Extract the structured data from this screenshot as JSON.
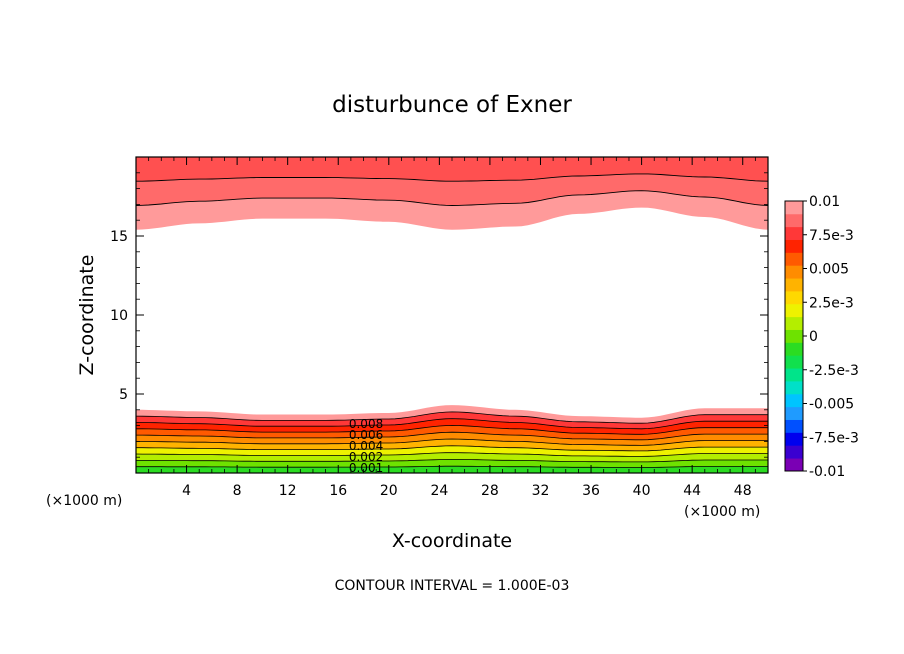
{
  "chart_data": {
    "type": "contour",
    "title": "disturbunce of Exner",
    "xlabel": "X-coordinate",
    "ylabel": "Z-coordinate",
    "x_unit_left": "(×1000 m)",
    "x_unit_right": "(×1000 m)",
    "xlim": [
      0,
      50
    ],
    "ylim": [
      0,
      20
    ],
    "xticks": [
      4,
      8,
      12,
      16,
      20,
      24,
      28,
      32,
      36,
      40,
      44,
      48
    ],
    "yticks": [
      5,
      10,
      15
    ],
    "contour_interval_text": "CONTOUR INTERVAL = 1.000E-03",
    "contour_labels": [
      "0.008",
      "0.006",
      "0.004",
      "0.002",
      "0.001"
    ],
    "colorbar": {
      "min": -0.01,
      "max": 0.01,
      "tick_labels": [
        "0.01",
        "7.5e-3",
        "0.005",
        "2.5e-3",
        "0",
        "-2.5e-3",
        "-0.005",
        "-7.5e-3",
        "-0.01"
      ],
      "colors": [
        "#7a00b4",
        "#3a00d0",
        "#0000ee",
        "#0050ff",
        "#1f9bff",
        "#00c4ff",
        "#00e0c8",
        "#00e48a",
        "#11e04d",
        "#2bdc22",
        "#6ee200",
        "#b4ee00",
        "#eef200",
        "#ffd800",
        "#ffb300",
        "#ff8c00",
        "#ff5a00",
        "#ff2300",
        "#ff3838",
        "#ff6a6a",
        "#ff9a9a"
      ]
    },
    "upper_layer": {
      "x": [
        0,
        5,
        10,
        15,
        20,
        25,
        30,
        35,
        40,
        45,
        50
      ],
      "boundary_z": [
        15.4,
        15.8,
        16.1,
        16.1,
        15.9,
        15.4,
        15.6,
        16.4,
        16.8,
        16.2,
        15.4
      ],
      "bands": [
        {
          "value": 0.01,
          "color": "#ff9a9a"
        },
        {
          "value": 0.011,
          "color": "#ff6a6a"
        },
        {
          "value": 0.012,
          "color": "#ff5050"
        }
      ]
    },
    "lower_layer": {
      "x": [
        0,
        5,
        10,
        15,
        20,
        25,
        30,
        35,
        40,
        45,
        50
      ],
      "boundary_z": [
        4.0,
        3.9,
        3.7,
        3.7,
        3.8,
        4.3,
        4.0,
        3.6,
        3.5,
        4.1,
        4.1
      ],
      "bands": [
        {
          "value": 0.01,
          "color": "#ff9a9a"
        },
        {
          "value": 0.009,
          "color": "#ff3838"
        },
        {
          "value": 0.008,
          "color": "#ff2300"
        },
        {
          "value": 0.007,
          "color": "#ff5a00"
        },
        {
          "value": 0.006,
          "color": "#ff8c00"
        },
        {
          "value": 0.005,
          "color": "#ffb300"
        },
        {
          "value": 0.004,
          "color": "#eef200"
        },
        {
          "value": 0.003,
          "color": "#b4ee00"
        },
        {
          "value": 0.002,
          "color": "#6ee200"
        },
        {
          "value": 0.001,
          "color": "#2bdc22"
        }
      ]
    }
  }
}
